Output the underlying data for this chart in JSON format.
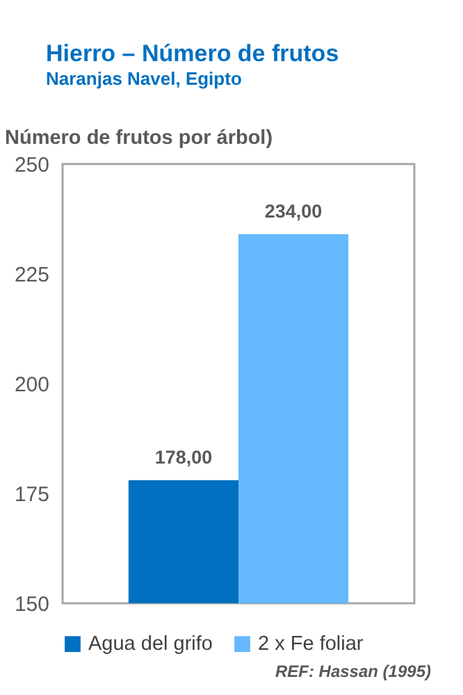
{
  "chart_data": {
    "type": "bar",
    "title": "Hierro – Número de frutos",
    "subtitle": "Naranjas Navel, Egipto",
    "ylabel": "Número de frutos por árbol)",
    "categories": [
      null
    ],
    "series": [
      {
        "name": "Agua del grifo",
        "color": "#0070c0",
        "values": [
          178
        ],
        "value_labels": [
          "178,00"
        ]
      },
      {
        "name": "2 x Fe foliar",
        "color": "#66b8ff",
        "values": [
          234
        ],
        "value_labels": [
          "234,00"
        ]
      }
    ],
    "ylim": [
      150,
      250
    ],
    "yticks": [
      150,
      175,
      200,
      225,
      250
    ],
    "legend": "bottom",
    "annotations": [
      "REF: Hassan (1995)"
    ]
  }
}
